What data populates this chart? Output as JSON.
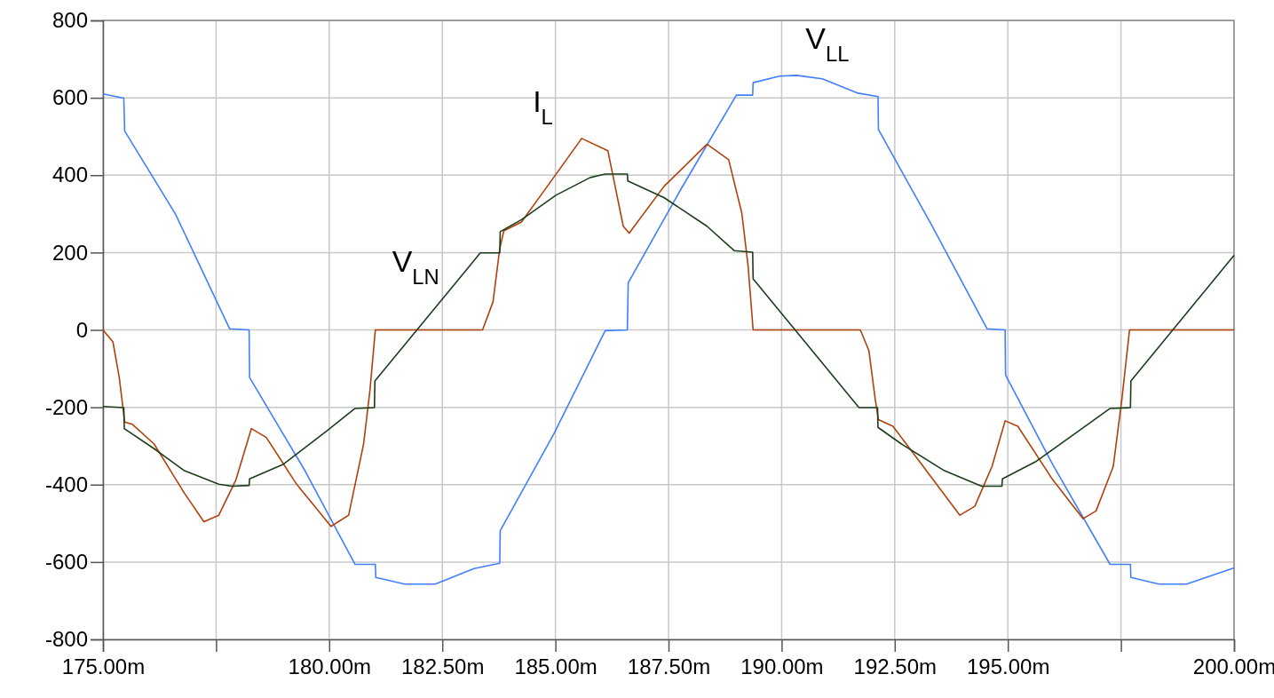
{
  "chart_data": {
    "type": "line",
    "xlim": [
      175,
      200
    ],
    "xticks": [
      {
        "value": 175,
        "label": "175.00m"
      },
      {
        "value": 177.5,
        "label": null
      },
      {
        "value": 180,
        "label": "180.00m"
      },
      {
        "value": 182.5,
        "label": "182.50m"
      },
      {
        "value": 185,
        "label": "185.00m"
      },
      {
        "value": 187.5,
        "label": "187.50m"
      },
      {
        "value": 190,
        "label": "190.00m"
      },
      {
        "value": 192.5,
        "label": "192.50m"
      },
      {
        "value": 195,
        "label": "195.00m"
      },
      {
        "value": 197.5,
        "label": null
      },
      {
        "value": 200,
        "label": "200.00m"
      }
    ],
    "ylim": [
      -800,
      800
    ],
    "yticks": [
      -800,
      -600,
      -400,
      -200,
      0,
      200,
      400,
      600,
      800
    ],
    "grid": true,
    "series": [
      {
        "name": "V$_{LL}$",
        "color": "#3f7fff",
        "x": [
          175,
          175.46,
          175.48,
          176.6,
          177.8,
          178.23,
          178.24,
          179.47,
          180.57,
          181.02,
          181.03,
          181.67,
          182.34,
          183.2,
          183.77,
          183.78,
          184.96,
          186.1,
          186.59,
          186.61,
          187.78,
          189.0,
          189.36,
          189.37,
          189.95,
          190.33,
          190.9,
          191.69,
          192.13,
          192.14,
          193.32,
          194.54,
          194.94,
          194.95,
          196.0,
          197.26,
          197.71,
          197.72,
          198.34,
          198.95,
          200
        ],
        "values": [
          610,
          599,
          514,
          300,
          3,
          0,
          -123,
          -365,
          -606,
          -606,
          -640,
          -657,
          -657,
          -617,
          -603,
          -519,
          -270,
          -2,
          0,
          122,
          365,
          607,
          607,
          639,
          656,
          658,
          649,
          612,
          603,
          518,
          270,
          3,
          0,
          -117,
          -350,
          -606,
          -606,
          -640,
          -657,
          -657,
          -615
        ]
      },
      {
        "name": "I$_{L}$",
        "color": "#b0400a",
        "x": [
          175,
          175.22,
          175.36,
          175.48,
          175.65,
          176.13,
          176.8,
          177.23,
          177.56,
          177.94,
          178.28,
          178.61,
          179.28,
          180.04,
          180.43,
          180.76,
          180.9,
          181.02,
          183.39,
          183.62,
          183.77,
          183.86,
          184.25,
          184.82,
          185.58,
          186.16,
          186.5,
          186.63,
          187.4,
          188.35,
          188.83,
          189.12,
          189.26,
          189.37,
          191.74,
          191.93,
          192.07,
          192.14,
          192.46,
          193.13,
          193.94,
          194.27,
          194.65,
          194.94,
          195.22,
          195.99,
          196.66,
          196.95,
          197.33,
          197.52,
          197.69,
          200
        ],
        "values": [
          0,
          -31,
          -123,
          -238,
          -244,
          -295,
          -422,
          -496,
          -479,
          -387,
          -255,
          -278,
          -399,
          -508,
          -479,
          -295,
          -157,
          0,
          0,
          72,
          210,
          256,
          279,
          371,
          495,
          463,
          268,
          250,
          371,
          480,
          440,
          302,
          164,
          0,
          0,
          -54,
          -180,
          -232,
          -249,
          -353,
          -479,
          -456,
          -353,
          -235,
          -249,
          -387,
          -488,
          -468,
          -353,
          -180,
          0,
          0
        ]
      },
      {
        "name": "V$_{LN}$",
        "color": "#1a3d1a",
        "x": [
          175,
          175.46,
          175.47,
          176.13,
          176.8,
          177.56,
          177.85,
          178.23,
          178.24,
          178.99,
          179.95,
          180.57,
          181.0,
          181.01,
          183.34,
          183.77,
          183.78,
          184.25,
          185.01,
          185.77,
          186.1,
          186.59,
          186.6,
          187.4,
          188.35,
          188.95,
          189.36,
          189.37,
          191.71,
          192.12,
          192.13,
          192.65,
          193.6,
          194.42,
          194.87,
          194.88,
          195.61,
          196.57,
          197.26,
          197.71,
          197.72,
          200
        ],
        "values": [
          -198,
          -201,
          -255,
          -307,
          -364,
          -399,
          -404,
          -402,
          -385,
          -347,
          -261,
          -203,
          -201,
          -132,
          199,
          199,
          254,
          285,
          348,
          394,
          403,
          403,
          385,
          342,
          268,
          205,
          201,
          132,
          -201,
          -201,
          -252,
          -295,
          -364,
          -404,
          -404,
          -385,
          -341,
          -261,
          -203,
          -201,
          -132,
          193
        ]
      }
    ]
  }
}
